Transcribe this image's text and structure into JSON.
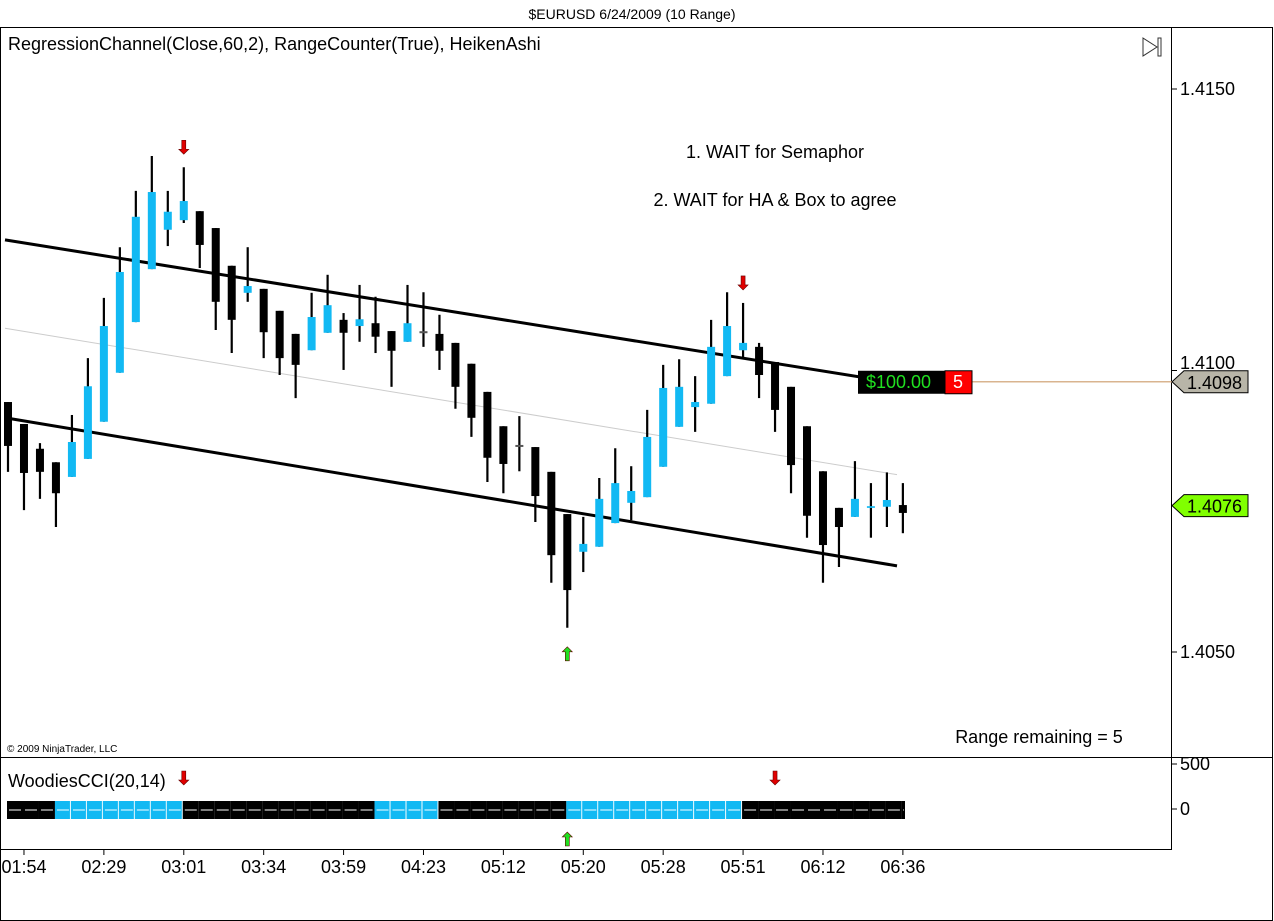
{
  "window_title": "$EURUSD  6/24/2009 (10 Range)",
  "indicator_label": "RegressionChannel(Close,60,2), RangeCounter(True), HeikenAshi",
  "annotations": [
    "1. WAIT for Semaphor",
    "2. WAIT for HA & Box to agree"
  ],
  "range_remaining": "Range remaining = 5",
  "copyright": "© 2009 NinjaTrader, LLC",
  "pnl_box": {
    "amount": "$100.00",
    "count": "5"
  },
  "price_markers": [
    {
      "label": "1.4098",
      "price": 1.4098,
      "color": "#b8b5a8"
    },
    {
      "label": "1.4076",
      "price": 1.4076,
      "color": "#80ff00"
    }
  ],
  "colors": {
    "up": "#12b9f3",
    "down": "#000000",
    "sell_arrow": "#e00000",
    "buy_arrow": "#20e020",
    "pnl_text": "#20e020",
    "count_bg": "#ff0000",
    "pnl_line": "#d9b48f"
  },
  "scroll_icon": "scroll-to-end-icon",
  "chart_data": [
    {
      "type": "candlestick",
      "style": "HeikenAshi",
      "y_axis": {
        "ticks": [
          "1.4150",
          "1.4100",
          "1.4050"
        ],
        "tick_values": [
          1.415,
          1.41,
          1.405
        ],
        "ylim": [
          1.40368,
          1.41654
        ]
      },
      "x_axis": {
        "ticks": [
          "01:54",
          "02:29",
          "03:01",
          "03:34",
          "03:59",
          "04:23",
          "05:12",
          "05:20",
          "05:28",
          "05:51",
          "06:12",
          "06:36"
        ],
        "tick_bar_index": [
          1,
          6,
          11,
          16,
          21,
          26,
          31,
          36,
          41,
          46,
          51,
          56
        ]
      },
      "bars": [
        [
          1.40944,
          1.40944,
          1.4082,
          1.40866
        ],
        [
          1.40905,
          1.40905,
          1.40752,
          1.40818
        ],
        [
          1.40861,
          1.40871,
          1.40772,
          1.4082
        ],
        [
          1.40837,
          1.40837,
          1.40722,
          1.40782
        ],
        [
          1.40811,
          1.40921,
          1.40811,
          1.40873
        ],
        [
          1.40843,
          1.41022,
          1.40843,
          1.40972
        ],
        [
          1.40909,
          1.41129,
          1.40909,
          1.41079
        ],
        [
          1.40996,
          1.41219,
          1.40996,
          1.41175
        ],
        [
          1.41086,
          1.41319,
          1.41086,
          1.41273
        ],
        [
          1.4118,
          1.41381,
          1.4118,
          1.41317
        ],
        [
          1.4125,
          1.41319,
          1.41221,
          1.41282
        ],
        [
          1.41267,
          1.41361,
          1.41262,
          1.41301
        ],
        [
          1.41283,
          1.41283,
          1.41182,
          1.41223
        ],
        [
          1.41253,
          1.41253,
          1.41072,
          1.41122
        ],
        [
          1.41186,
          1.41186,
          1.41031,
          1.4109
        ],
        [
          1.41138,
          1.41219,
          1.41122,
          1.4115
        ],
        [
          1.41145,
          1.41145,
          1.41022,
          1.41068
        ],
        [
          1.41106,
          1.41106,
          1.40992,
          1.41022
        ],
        [
          1.41065,
          1.41065,
          1.40951,
          1.4101
        ],
        [
          1.41036,
          1.41138,
          1.41036,
          1.41095
        ],
        [
          1.41067,
          1.4117,
          1.41067,
          1.41116
        ],
        [
          1.4109,
          1.41102,
          1.41001,
          1.41067
        ],
        [
          1.41079,
          1.41152,
          1.41051,
          1.41091
        ],
        [
          1.41084,
          1.41131,
          1.41031,
          1.4106
        ],
        [
          1.4107,
          1.4107,
          1.40971,
          1.41035
        ],
        [
          1.41051,
          1.41152,
          1.41051,
          1.41084
        ],
        [
          1.41068,
          1.41139,
          1.41042,
          1.41068
        ],
        [
          1.41065,
          1.41099,
          1.41001,
          1.41035
        ],
        [
          1.41049,
          1.41049,
          1.40932,
          1.40971
        ],
        [
          1.41012,
          1.41012,
          1.40882,
          1.40916
        ],
        [
          1.40962,
          1.40962,
          1.40802,
          1.40845
        ],
        [
          1.40901,
          1.40901,
          1.40782,
          1.40834
        ],
        [
          1.40866,
          1.40919,
          1.40821,
          1.40866
        ],
        [
          1.40864,
          1.40864,
          1.40731,
          1.40777
        ],
        [
          1.4082,
          1.4082,
          1.40623,
          1.40672
        ],
        [
          1.40745,
          1.40745,
          1.40543,
          1.4061
        ],
        [
          1.40678,
          1.4074,
          1.40642,
          1.40692
        ],
        [
          1.40687,
          1.40809,
          1.40687,
          1.40772
        ],
        [
          1.40729,
          1.40862,
          1.40729,
          1.408
        ],
        [
          1.40765,
          1.4083,
          1.40734,
          1.40786
        ],
        [
          1.40775,
          1.4093,
          1.40775,
          1.40882
        ],
        [
          1.40829,
          1.4101,
          1.40829,
          1.40969
        ],
        [
          1.409,
          1.4102,
          1.409,
          1.40971
        ],
        [
          1.40935,
          1.4099,
          1.40891,
          1.40944
        ],
        [
          1.40941,
          1.4109,
          1.40941,
          1.41042
        ],
        [
          1.4099,
          1.41139,
          1.4099,
          1.41079
        ],
        [
          1.41036,
          1.4112,
          1.41022,
          1.41049
        ],
        [
          1.41042,
          1.41049,
          1.40951,
          1.40992
        ],
        [
          1.41015,
          1.41015,
          1.40891,
          1.4093
        ],
        [
          1.40971,
          1.40971,
          1.40782,
          1.40832
        ],
        [
          1.40901,
          1.40901,
          1.40703,
          1.40742
        ],
        [
          1.40821,
          1.40821,
          1.40623,
          1.4069
        ],
        [
          1.40756,
          1.40756,
          1.40651,
          1.40722
        ],
        [
          1.4074,
          1.40839,
          1.4074,
          1.40772
        ],
        [
          1.40756,
          1.408,
          1.40703,
          1.40759
        ],
        [
          1.40758,
          1.40819,
          1.40722,
          1.4077
        ],
        [
          1.40761,
          1.408,
          1.40711,
          1.40747
        ]
      ],
      "bar_fields": [
        "open",
        "high",
        "low",
        "close"
      ],
      "regression_channel": {
        "upper": [
          1.41232,
          1.40978
        ],
        "middle": [
          1.41075,
          1.40815
        ],
        "lower": [
          1.40916,
          1.40653
        ]
      },
      "signals": [
        {
          "bar_index": 12,
          "direction": "down"
        },
        {
          "bar_index": 36,
          "direction": "up"
        },
        {
          "bar_index": 47,
          "direction": "down"
        }
      ]
    },
    {
      "type": "heatmap",
      "title": "WoodiesCCI(20,14)",
      "y_axis": {
        "ticks": [
          "500",
          "0"
        ]
      },
      "cci_state": [
        "black",
        "black",
        "black",
        "blue",
        "blue",
        "blue",
        "blue",
        "blue",
        "blue",
        "blue",
        "blue",
        "black",
        "black",
        "black",
        "black",
        "black",
        "black",
        "black",
        "black",
        "black",
        "black",
        "black",
        "black",
        "blue",
        "blue",
        "blue",
        "blue",
        "black",
        "black",
        "black",
        "black",
        "black",
        "black",
        "black",
        "black",
        "blue",
        "blue",
        "blue",
        "blue",
        "blue",
        "blue",
        "blue",
        "blue",
        "blue",
        "blue",
        "blue",
        "black",
        "black",
        "black",
        "black",
        "black",
        "black",
        "black",
        "black",
        "black",
        "black",
        "black"
      ],
      "signals": [
        {
          "bar_index": 12,
          "direction": "down"
        },
        {
          "bar_index": 36,
          "direction": "up"
        },
        {
          "bar_index": 49,
          "direction": "down"
        }
      ]
    }
  ]
}
